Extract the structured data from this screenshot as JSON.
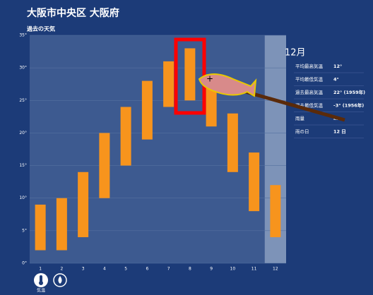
{
  "header": {
    "title": "大阪市中央区 大阪府"
  },
  "chart_data": {
    "type": "range_bar",
    "title": "過去の天気",
    "categories": [
      "1",
      "2",
      "3",
      "4",
      "5",
      "6",
      "7",
      "8",
      "9",
      "10",
      "11",
      "12"
    ],
    "low": [
      2,
      2,
      4,
      10,
      15,
      19,
      24,
      25,
      21,
      14,
      8,
      4
    ],
    "high": [
      9,
      10,
      14,
      20,
      24,
      28,
      31,
      33,
      29,
      23,
      17,
      12
    ],
    "color": "#f7941d",
    "ylim": [
      0,
      35
    ],
    "yticks": [
      {
        "value": 0,
        "label": "0°"
      },
      {
        "value": 5,
        "label": "5°"
      },
      {
        "value": 10,
        "label": "10°"
      },
      {
        "value": 15,
        "label": "15°"
      },
      {
        "value": 20,
        "label": "20°"
      },
      {
        "value": 25,
        "label": "25°"
      },
      {
        "value": 30,
        "label": "30°"
      },
      {
        "value": 35,
        "label": "35°"
      }
    ],
    "grid": true
  },
  "panel": {
    "title": "12月",
    "rows": [
      [
        "平均最高気温",
        "12°"
      ],
      [
        "平均最低気温",
        "4°"
      ],
      [
        "過去最高気温",
        "22° (1959年)"
      ],
      [
        "過去最低気温",
        "-3° (1956年)"
      ],
      [
        "雨量",
        "m"
      ],
      [
        "雨の日",
        "12 日"
      ]
    ]
  },
  "footer": {
    "label": "気温"
  }
}
